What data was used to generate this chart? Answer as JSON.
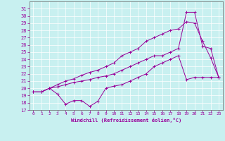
{
  "xlabel": "Windchill (Refroidissement éolien,°C)",
  "bg_color": "#c8f0f0",
  "line_color": "#990099",
  "xlim": [
    -0.5,
    23.5
  ],
  "ylim": [
    17,
    32
  ],
  "yticks": [
    17,
    18,
    19,
    20,
    21,
    22,
    23,
    24,
    25,
    26,
    27,
    28,
    29,
    30,
    31
  ],
  "xticks": [
    0,
    1,
    2,
    3,
    4,
    5,
    6,
    7,
    8,
    9,
    10,
    11,
    12,
    13,
    14,
    15,
    16,
    17,
    18,
    19,
    20,
    21,
    22,
    23
  ],
  "line1_x": [
    0,
    1,
    2,
    3,
    4,
    5,
    6,
    7,
    8,
    9,
    10,
    11,
    12,
    13,
    14,
    15,
    16,
    17,
    18,
    19,
    20,
    21,
    22,
    23
  ],
  "line1_y": [
    19.5,
    19.5,
    20.0,
    19.2,
    17.8,
    18.3,
    18.3,
    17.5,
    18.2,
    20.0,
    20.3,
    20.5,
    21.0,
    21.5,
    22.0,
    23.0,
    23.5,
    24.0,
    24.5,
    21.2,
    21.5,
    21.5,
    21.5,
    21.5
  ],
  "line2_x": [
    0,
    1,
    2,
    3,
    4,
    5,
    6,
    7,
    8,
    9,
    10,
    11,
    12,
    13,
    14,
    15,
    16,
    17,
    18,
    19,
    20,
    21,
    22,
    23
  ],
  "line2_y": [
    19.5,
    19.5,
    20.0,
    20.5,
    21.0,
    21.3,
    21.8,
    22.2,
    22.5,
    23.0,
    23.5,
    24.5,
    25.0,
    25.5,
    26.5,
    27.0,
    27.5,
    28.0,
    28.2,
    29.2,
    29.0,
    26.5,
    24.2,
    21.5
  ],
  "line3_x": [
    0,
    1,
    2,
    3,
    4,
    5,
    6,
    7,
    8,
    9,
    10,
    11,
    12,
    13,
    14,
    15,
    16,
    17,
    18,
    19,
    20,
    21,
    22,
    23
  ],
  "line3_y": [
    19.5,
    19.5,
    20.0,
    20.2,
    20.5,
    20.8,
    21.0,
    21.2,
    21.5,
    21.7,
    22.0,
    22.5,
    23.0,
    23.5,
    24.0,
    24.5,
    24.5,
    25.0,
    25.5,
    30.5,
    30.5,
    25.8,
    25.5,
    21.5
  ]
}
